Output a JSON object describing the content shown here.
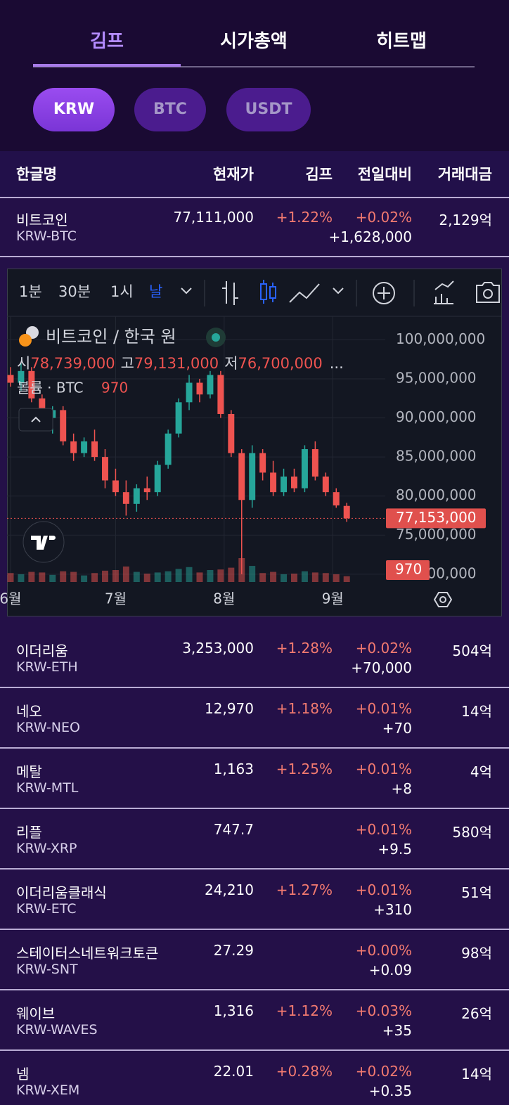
{
  "tabs": [
    "김프",
    "시가총액",
    "히트맵"
  ],
  "currencies": [
    "KRW",
    "BTC",
    "USDT"
  ],
  "table": {
    "headers": [
      "한글명",
      "현재가",
      "김프",
      "전일대비",
      "거래대금"
    ],
    "rows": [
      {
        "name": "비트코인",
        "ticker": "KRW-BTC",
        "price": "77,111,000",
        "kimp": "+1.22%",
        "change_pct": "+0.02%",
        "change_abs": "+1,628,000",
        "volume": "2,129억"
      },
      {
        "name": "이더리움",
        "ticker": "KRW-ETH",
        "price": "3,253,000",
        "kimp": "+1.28%",
        "change_pct": "+0.02%",
        "change_abs": "+70,000",
        "volume": "504억"
      },
      {
        "name": "네오",
        "ticker": "KRW-NEO",
        "price": "12,970",
        "kimp": "+1.18%",
        "change_pct": "+0.01%",
        "change_abs": "+70",
        "volume": "14억"
      },
      {
        "name": "메탈",
        "ticker": "KRW-MTL",
        "price": "1,163",
        "kimp": "+1.25%",
        "change_pct": "+0.01%",
        "change_abs": "+8",
        "volume": "4억"
      },
      {
        "name": "리플",
        "ticker": "KRW-XRP",
        "price": "747.7",
        "kimp": null,
        "change_pct": "+0.01%",
        "change_abs": "+9.5",
        "volume": "580억"
      },
      {
        "name": "이더리움클래식",
        "ticker": "KRW-ETC",
        "price": "24,210",
        "kimp": "+1.27%",
        "change_pct": "+0.01%",
        "change_abs": "+310",
        "volume": "51억"
      },
      {
        "name": "스테이터스네트워크토큰",
        "ticker": "KRW-SNT",
        "price": "27.29",
        "kimp": null,
        "change_pct": "+0.00%",
        "change_abs": "+0.09",
        "volume": "98억"
      },
      {
        "name": "웨이브",
        "ticker": "KRW-WAVES",
        "price": "1,316",
        "kimp": "+1.12%",
        "change_pct": "+0.03%",
        "change_abs": "+35",
        "volume": "26억"
      },
      {
        "name": "넴",
        "ticker": "KRW-XEM",
        "price": "22.01",
        "kimp": "+0.28%",
        "change_pct": "+0.02%",
        "change_abs": "+0.35",
        "volume": "14억"
      }
    ]
  },
  "widget": {
    "intervals": [
      "1분",
      "30분",
      "1시",
      "날"
    ],
    "symbol": "비트코인 / 한국 원",
    "legend": [
      {
        "label": "시",
        "value": "78,739,000"
      },
      {
        "label": "고",
        "value": "79,131,000"
      },
      {
        "label": "저",
        "value": "76,700,000"
      }
    ],
    "ellipsis": "...",
    "volume_label": "볼륨 · BTC"
  },
  "chart_data": {
    "type": "candlestick",
    "up_color": "#26a69a",
    "down_color": "#ef5350",
    "xlim": [
      0,
      108
    ],
    "ylim": [
      69000000,
      103000000
    ],
    "xticks": [
      {
        "value": 1,
        "label": "6월"
      },
      {
        "value": 31,
        "label": "7월"
      },
      {
        "value": 62,
        "label": "8월"
      },
      {
        "value": 93,
        "label": "9월"
      }
    ],
    "yticks": [
      {
        "value": 70000000,
        "label": "70,000,000"
      },
      {
        "value": 75000000,
        "label": "75,000,000"
      },
      {
        "value": 80000000,
        "label": "80,000,000"
      },
      {
        "value": 85000000,
        "label": "85,000,000"
      },
      {
        "value": 90000000,
        "label": "90,000,000"
      },
      {
        "value": 95000000,
        "label": "95,000,000"
      },
      {
        "value": 100000000,
        "label": "100,000,000"
      }
    ],
    "grid": true,
    "x": [
      1,
      4,
      7,
      10,
      13,
      16,
      19,
      22,
      25,
      28,
      31,
      34,
      37,
      40,
      43,
      46,
      49,
      52,
      55,
      58,
      61,
      64,
      67,
      70,
      73,
      76,
      79,
      82,
      85,
      88,
      91,
      94,
      97
    ],
    "open": [
      95500000,
      94500000,
      96000000,
      92500000,
      90000000,
      91000000,
      87000000,
      85500000,
      87000000,
      85000000,
      82000000,
      80500000,
      79000000,
      81000000,
      80500000,
      84000000,
      88000000,
      92000000,
      94500000,
      93000000,
      95500000,
      90500000,
      85500000,
      79500000,
      85500000,
      83000000,
      80500000,
      82500000,
      81000000,
      86000000,
      82500000,
      80500000,
      78739000
    ],
    "high": [
      96500000,
      97000000,
      96500000,
      93000000,
      91500000,
      91500000,
      88000000,
      87500000,
      88500000,
      86000000,
      83500000,
      82000000,
      81500000,
      82500000,
      84500000,
      88500000,
      92500000,
      95500000,
      95000000,
      96000000,
      96000000,
      91000000,
      86000000,
      86500000,
      86000000,
      84500000,
      83500000,
      83500000,
      86500000,
      87000000,
      83000000,
      81000000,
      79131000
    ],
    "low": [
      94000000,
      93500000,
      92000000,
      89000000,
      88000000,
      86500000,
      84500000,
      85000000,
      84500000,
      81000000,
      80000000,
      77500000,
      78000000,
      79500000,
      80000000,
      83500000,
      87500000,
      91000000,
      92000000,
      92500000,
      90000000,
      85000000,
      70000000,
      78500000,
      82000000,
      80000000,
      80000000,
      80500000,
      80500000,
      82000000,
      80000000,
      78500000,
      76700000
    ],
    "close": [
      94500000,
      96000000,
      92500000,
      90000000,
      91000000,
      87000000,
      85500000,
      87000000,
      85000000,
      82000000,
      80500000,
      79000000,
      81000000,
      80500000,
      84000000,
      88000000,
      92000000,
      94500000,
      93000000,
      95500000,
      90500000,
      85500000,
      79500000,
      85500000,
      83000000,
      80500000,
      82500000,
      81000000,
      86000000,
      82500000,
      80500000,
      78800000,
      77153000
    ],
    "volume": [
      1500,
      1300,
      1700,
      1600,
      1200,
      1800,
      1700,
      1100,
      1500,
      1900,
      2000,
      2600,
      1700,
      1400,
      1600,
      1800,
      2200,
      2500,
      1600,
      2000,
      2100,
      2400,
      4000,
      2700,
      1500,
      1700,
      1300,
      1400,
      1800,
      1600,
      1500,
      1300,
      970
    ],
    "price_line": {
      "value": 77153000,
      "label": "77,153,000"
    }
  }
}
